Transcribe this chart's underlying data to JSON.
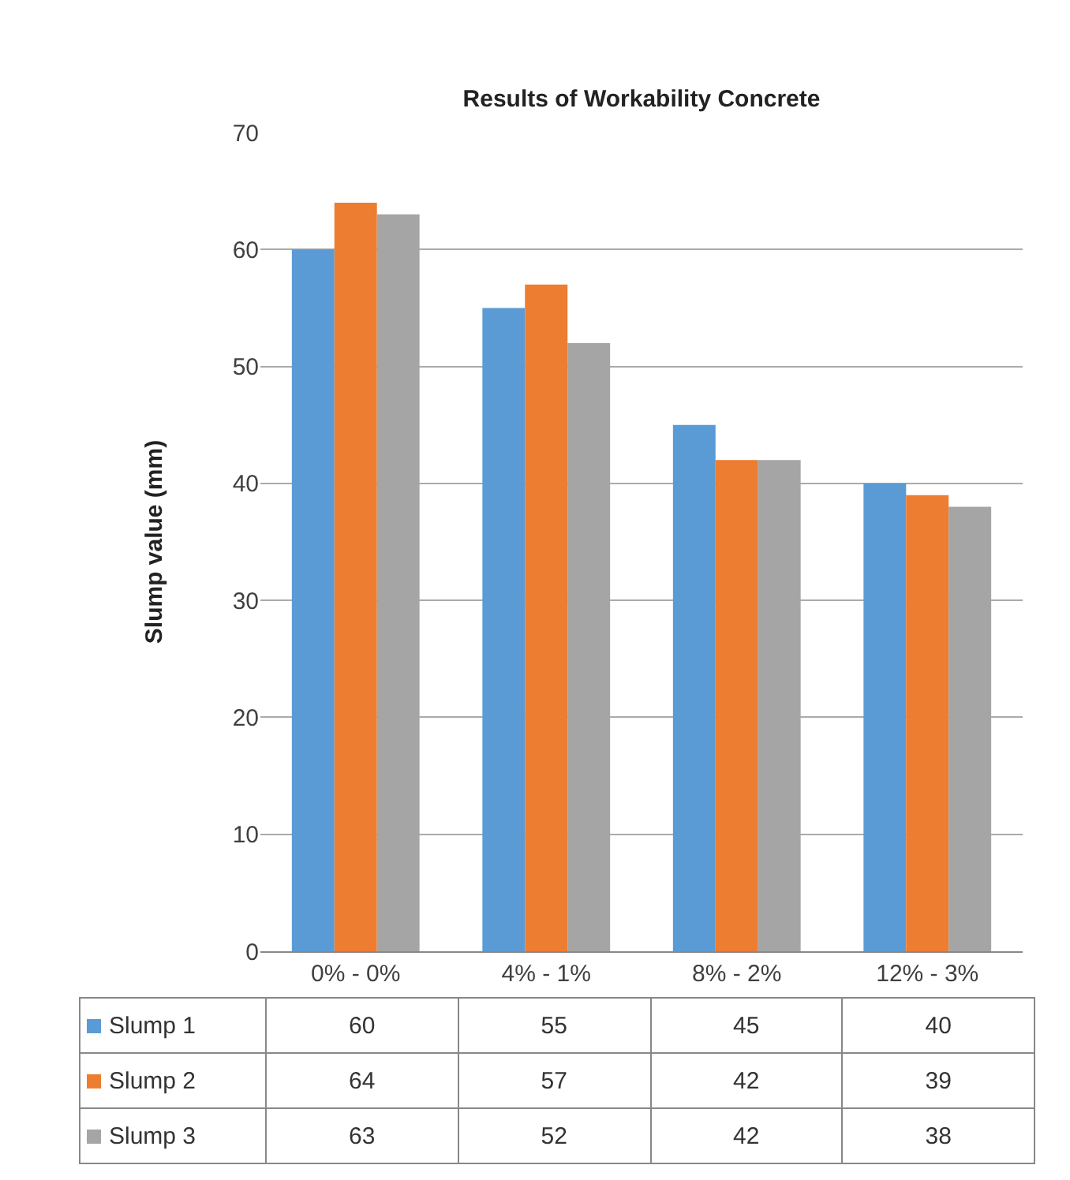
{
  "chart_data": {
    "type": "bar",
    "title": "Results of Workability Concrete",
    "ylabel": "Slump value (mm)",
    "categories": [
      "0% - 0%",
      "4% - 1%",
      "8% - 2%",
      "12% - 3%"
    ],
    "series": [
      {
        "name": "Slump 1",
        "color": "#5b9bd5",
        "values": [
          60,
          55,
          45,
          40
        ]
      },
      {
        "name": "Slump 2",
        "color": "#ed7d31",
        "values": [
          64,
          57,
          42,
          39
        ]
      },
      {
        "name": "Slump 3",
        "color": "#a5a5a5",
        "values": [
          63,
          52,
          42,
          38
        ]
      }
    ],
    "ylim": [
      0,
      70
    ],
    "yticks": [
      0,
      10,
      20,
      30,
      40,
      50,
      60,
      70
    ],
    "grid": "y",
    "legend": "bottom",
    "data_labels": true
  }
}
